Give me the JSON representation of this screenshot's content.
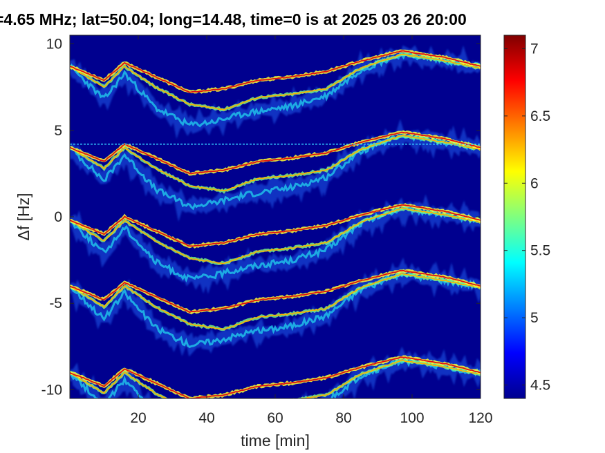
{
  "chart_data": {
    "type": "heatmap",
    "title": "=4.65 MHz;  lat=50.04; long=14.48, time=0 is at 2025 03 26 20:00",
    "xlabel": "time [min]",
    "ylabel": "Δf [Hz]",
    "xlim": [
      0,
      120
    ],
    "ylim": [
      -10.5,
      10.5
    ],
    "xticks": [
      20,
      40,
      60,
      80,
      100,
      120
    ],
    "yticks": [
      10,
      5,
      0,
      -5,
      -10
    ],
    "colorbar": {
      "range": [
        4.4,
        7.1
      ],
      "ticks": [
        7,
        6.5,
        6,
        5.5,
        5,
        4.5
      ],
      "colormap": "jet"
    },
    "background_color": "#00008f",
    "carrier_line": {
      "y": 4.2,
      "color": "#33ccff"
    },
    "trace_offsets": [
      8.7,
      4.0,
      -0.2,
      -4.0,
      -9.0
    ],
    "traces": {
      "upper": {
        "x": [
          0,
          10,
          16,
          25,
          35,
          45,
          55,
          65,
          75,
          85,
          97,
          110,
          120
        ],
        "y": [
          0,
          -0.8,
          0.2,
          -0.6,
          -1.5,
          -1.3,
          -0.8,
          -0.6,
          -0.3,
          0.3,
          0.9,
          0.5,
          0.0
        ]
      },
      "lower": {
        "x": [
          0,
          10,
          16,
          25,
          35,
          45,
          55,
          65,
          75,
          85,
          97,
          110,
          120
        ],
        "y": [
          0,
          -1.2,
          0.0,
          -1.2,
          -2.2,
          -2.5,
          -1.8,
          -1.6,
          -1.3,
          -0.1,
          0.7,
          0.3,
          -0.1
        ]
      },
      "diffuse": {
        "x": [
          0,
          10,
          16,
          25,
          35,
          42,
          52,
          65,
          75,
          85,
          97,
          110,
          120
        ],
        "y": [
          0,
          -1.9,
          -0.4,
          -2.4,
          -3.4,
          -3.2,
          -2.7,
          -2.3,
          -1.7,
          -0.2,
          0.7,
          0.3,
          0.0
        ]
      }
    }
  }
}
